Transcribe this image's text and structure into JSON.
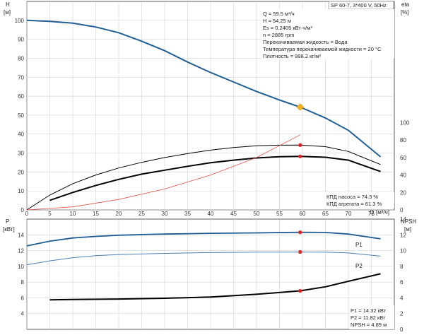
{
  "chart_data": [
    {
      "type": "line",
      "x_axis": {
        "label": "Q",
        "unit": "[м³/ч]",
        "range": [
          0,
          80
        ],
        "ticks": [
          0,
          5,
          10,
          15,
          20,
          25,
          30,
          35,
          40,
          45,
          50,
          55,
          60,
          65,
          70,
          75
        ]
      },
      "y_left": {
        "label": "H",
        "unit": "[м]",
        "range": [
          0,
          110
        ],
        "ticks": [
          0,
          10,
          20,
          30,
          40,
          50,
          60,
          70,
          80,
          90,
          100
        ]
      },
      "y_right": {
        "label": "eta",
        "unit": "[%]",
        "ticks": [
          0,
          20,
          40,
          60,
          80,
          100
        ]
      },
      "grid": true,
      "title_box": "SP 60-7, 3*400 V, 50Hz",
      "info_lines": [
        "Q = 59.5 м³/ч",
        "H = 54.25 м",
        "Es = 0.2405 кВт·ч/м³",
        "n = 2885 rpm",
        "Перекачиваемая жидкость = Вода",
        "Температура перекачиваемой жидкости = 20 °C",
        "Плотность = 998.2 кг/м³"
      ],
      "eff_lines": [
        "КПД насоса = 74.3 %",
        "КПД агрегата = 61.3 %"
      ],
      "series": [
        {
          "axis": "H",
          "color": "#1f5e96",
          "x": [
            0,
            5,
            10,
            15,
            20,
            25,
            30,
            35,
            40,
            45,
            50,
            55,
            59.5,
            65,
            70,
            77
          ],
          "y": [
            100,
            99.5,
            98.5,
            96.5,
            93.5,
            89,
            84,
            78,
            72.5,
            67.5,
            62.5,
            58,
            54.25,
            48.5,
            42,
            28
          ]
        },
        {
          "axis": "eta",
          "color": "#000000",
          "x": [
            0,
            5,
            10,
            15,
            20,
            25,
            30,
            35,
            40,
            45,
            50,
            55,
            59.5,
            65,
            70,
            77
          ],
          "y": [
            0,
            17,
            30,
            40,
            48,
            54.5,
            60,
            64.5,
            68.5,
            71.5,
            73.5,
            74.2,
            74.3,
            72.5,
            67,
            52
          ]
        },
        {
          "axis": "eta",
          "color": "#000000",
          "x": [
            5,
            10,
            15,
            20,
            25,
            30,
            35,
            40,
            45,
            50,
            55,
            59.5,
            65,
            70,
            77
          ],
          "y": [
            11,
            20,
            28,
            35,
            41,
            45.5,
            50,
            54,
            57,
            59.5,
            61,
            61.3,
            60.3,
            57,
            44
          ]
        },
        {
          "axis": "eta",
          "color": "#e2534a",
          "x": [
            0,
            10,
            20,
            30,
            40,
            50,
            59.5
          ],
          "y": [
            0,
            3.5,
            12,
            24,
            40,
            60,
            86
          ]
        }
      ],
      "operating_point": {
        "x": 59.5,
        "H": 54.25,
        "eta_pump": 74.3,
        "eta_unit": 61.3,
        "marker_color": "#f2b21f",
        "dot_color": "#e02020"
      }
    },
    {
      "type": "line",
      "x_axis": {
        "range": [
          0,
          80
        ]
      },
      "y_left": {
        "label": "P",
        "unit": "[кВт]",
        "range": [
          2,
          16
        ],
        "ticks": [
          4,
          6,
          8,
          10,
          12,
          14
        ]
      },
      "y_right": {
        "label": "NPSH",
        "unit": "[м]",
        "ticks": [
          0,
          2,
          4,
          6,
          8,
          10,
          12,
          14
        ]
      },
      "grid": true,
      "series": [
        {
          "name": "P1",
          "color": "#1f5e96",
          "x": [
            0,
            5,
            10,
            15,
            20,
            30,
            40,
            50,
            59.5,
            65,
            70,
            77
          ],
          "y": [
            12.6,
            13.2,
            13.6,
            13.8,
            13.95,
            14.1,
            14.2,
            14.25,
            14.32,
            14.3,
            14.1,
            13.5
          ]
        },
        {
          "name": "P2",
          "color": "#4a7fb5",
          "x": [
            0,
            5,
            10,
            15,
            20,
            30,
            40,
            50,
            59.5,
            65,
            70,
            77
          ],
          "y": [
            10.2,
            10.7,
            11.1,
            11.35,
            11.5,
            11.65,
            11.75,
            11.8,
            11.82,
            11.8,
            11.7,
            11.3
          ]
        },
        {
          "axis": "NPSH",
          "color": "#000000",
          "x": [
            5,
            10,
            20,
            30,
            40,
            50,
            59.5,
            65,
            70,
            77
          ],
          "y": [
            3.75,
            3.8,
            3.85,
            3.95,
            4.1,
            4.45,
            4.89,
            5.4,
            6.1,
            7.05
          ]
        }
      ],
      "readout": [
        "P1 = 14.32 кВт",
        "P2 = 11.82 кВт",
        "NPSH = 4.89 м"
      ],
      "operating_point": {
        "x": 59.5,
        "P1": 14.32,
        "P2": 11.82,
        "NPSH": 4.89
      }
    }
  ]
}
